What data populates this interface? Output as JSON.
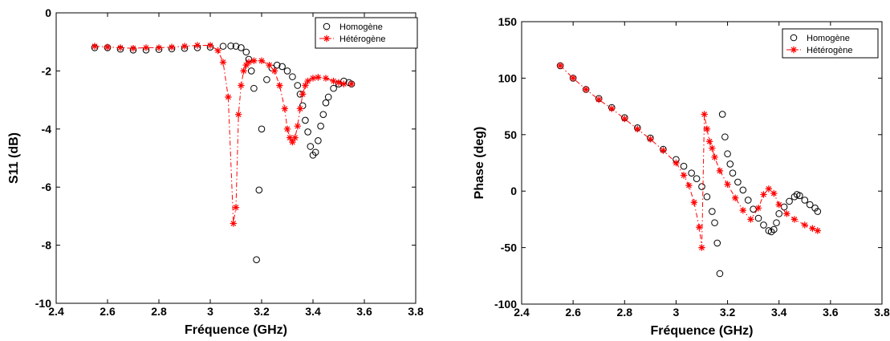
{
  "chart_data": [
    {
      "type": "scatter",
      "xlabel": "Fréquence (GHz)",
      "ylabel": "S11 (dB)",
      "xlim": [
        2.4,
        3.8
      ],
      "ylim": [
        -10,
        0
      ],
      "xticks": [
        "2.4",
        "2.6",
        "2.8",
        "3",
        "3.2",
        "3.4",
        "3.6",
        "3.8"
      ],
      "yticks": [
        "-10",
        "-8",
        "-6",
        "-4",
        "-2",
        "0"
      ],
      "grid": false,
      "legend_position": "top-right",
      "series": [
        {
          "name": "Homogène",
          "color": "#000000",
          "marker": "circle",
          "line": "none",
          "x": [
            2.55,
            2.6,
            2.65,
            2.7,
            2.75,
            2.8,
            2.85,
            2.9,
            2.95,
            3.0,
            3.05,
            3.08,
            3.1,
            3.12,
            3.14,
            3.15,
            3.16,
            3.17,
            3.18,
            3.19,
            3.2,
            3.22,
            3.24,
            3.26,
            3.28,
            3.3,
            3.32,
            3.34,
            3.35,
            3.36,
            3.37,
            3.38,
            3.39,
            3.4,
            3.41,
            3.42,
            3.43,
            3.44,
            3.45,
            3.46,
            3.48,
            3.5,
            3.52,
            3.54,
            3.55
          ],
          "y": [
            -1.2,
            -1.2,
            -1.25,
            -1.28,
            -1.28,
            -1.26,
            -1.24,
            -1.22,
            -1.2,
            -1.18,
            -1.15,
            -1.14,
            -1.15,
            -1.2,
            -1.35,
            -1.6,
            -2.0,
            -2.6,
            -8.5,
            -6.1,
            -4.0,
            -2.3,
            -1.9,
            -1.8,
            -1.85,
            -2.0,
            -2.2,
            -2.5,
            -2.8,
            -3.2,
            -3.7,
            -4.1,
            -4.6,
            -4.9,
            -4.8,
            -4.4,
            -3.9,
            -3.5,
            -3.1,
            -2.9,
            -2.6,
            -2.45,
            -2.35,
            -2.4,
            -2.45
          ]
        },
        {
          "name": "Hétérogène",
          "color": "#ff0000",
          "marker": "star",
          "line": "dash-dot",
          "x": [
            2.55,
            2.6,
            2.65,
            2.7,
            2.75,
            2.8,
            2.85,
            2.9,
            2.95,
            3.0,
            3.03,
            3.05,
            3.07,
            3.09,
            3.1,
            3.11,
            3.12,
            3.13,
            3.14,
            3.15,
            3.17,
            3.2,
            3.23,
            3.25,
            3.27,
            3.29,
            3.3,
            3.31,
            3.32,
            3.33,
            3.34,
            3.35,
            3.36,
            3.37,
            3.38,
            3.4,
            3.42,
            3.45,
            3.48,
            3.5,
            3.52,
            3.55
          ],
          "y": [
            -1.15,
            -1.18,
            -1.2,
            -1.22,
            -1.2,
            -1.2,
            -1.18,
            -1.15,
            -1.12,
            -1.12,
            -1.3,
            -1.7,
            -2.9,
            -7.25,
            -6.7,
            -3.5,
            -2.5,
            -2.0,
            -1.8,
            -1.7,
            -1.65,
            -1.65,
            -1.8,
            -2.0,
            -2.5,
            -3.3,
            -4.0,
            -4.3,
            -4.45,
            -4.3,
            -3.9,
            -3.3,
            -2.8,
            -2.5,
            -2.35,
            -2.25,
            -2.22,
            -2.25,
            -2.35,
            -2.4,
            -2.45,
            -2.45
          ]
        }
      ]
    },
    {
      "type": "scatter",
      "xlabel": "Fréquence (GHz)",
      "ylabel": "Phase (deg)",
      "xlim": [
        2.4,
        3.8
      ],
      "ylim": [
        -100,
        150
      ],
      "xticks": [
        "2.4",
        "2.6",
        "2.8",
        "3",
        "3.2",
        "3.4",
        "3.6",
        "3.8"
      ],
      "yticks": [
        "-100",
        "-50",
        "0",
        "50",
        "100",
        "150"
      ],
      "grid": false,
      "legend_position": "top-right",
      "series": [
        {
          "name": "Homogène",
          "color": "#000000",
          "marker": "circle",
          "line": "none",
          "x": [
            2.55,
            2.6,
            2.65,
            2.7,
            2.75,
            2.8,
            2.85,
            2.9,
            2.95,
            3.0,
            3.03,
            3.06,
            3.08,
            3.1,
            3.12,
            3.14,
            3.15,
            3.16,
            3.17,
            3.18,
            3.19,
            3.2,
            3.21,
            3.22,
            3.24,
            3.26,
            3.28,
            3.3,
            3.32,
            3.34,
            3.36,
            3.37,
            3.38,
            3.39,
            3.4,
            3.42,
            3.44,
            3.46,
            3.47,
            3.48,
            3.5,
            3.52,
            3.54,
            3.55
          ],
          "y": [
            111,
            100,
            90,
            82,
            74,
            65,
            56,
            47,
            37,
            28,
            22,
            16,
            11,
            4,
            -5,
            -18,
            -28,
            -46,
            -73,
            68,
            48,
            33,
            24,
            16,
            8,
            1,
            -8,
            -16,
            -24,
            -30,
            -35,
            -36,
            -34,
            -28,
            -20,
            -14,
            -9,
            -5,
            -3,
            -4,
            -8,
            -12,
            -15,
            -18
          ]
        },
        {
          "name": "Hétérogène",
          "color": "#ff0000",
          "marker": "star",
          "line": "dash-dot",
          "x": [
            2.55,
            2.6,
            2.65,
            2.7,
            2.75,
            2.8,
            2.85,
            2.9,
            2.95,
            3.0,
            3.03,
            3.05,
            3.07,
            3.09,
            3.1,
            3.11,
            3.12,
            3.13,
            3.14,
            3.15,
            3.17,
            3.2,
            3.23,
            3.26,
            3.29,
            3.32,
            3.34,
            3.36,
            3.38,
            3.4,
            3.43,
            3.46,
            3.5,
            3.53,
            3.55
          ],
          "y": [
            111,
            100,
            90,
            81,
            73,
            64,
            55,
            46,
            36,
            25,
            14,
            5,
            -10,
            -32,
            -50,
            68,
            55,
            44,
            38,
            30,
            18,
            6,
            -6,
            -17,
            -25,
            -15,
            -3,
            2,
            -2,
            -12,
            -20,
            -25,
            -30,
            -33,
            -35
          ]
        }
      ]
    }
  ]
}
